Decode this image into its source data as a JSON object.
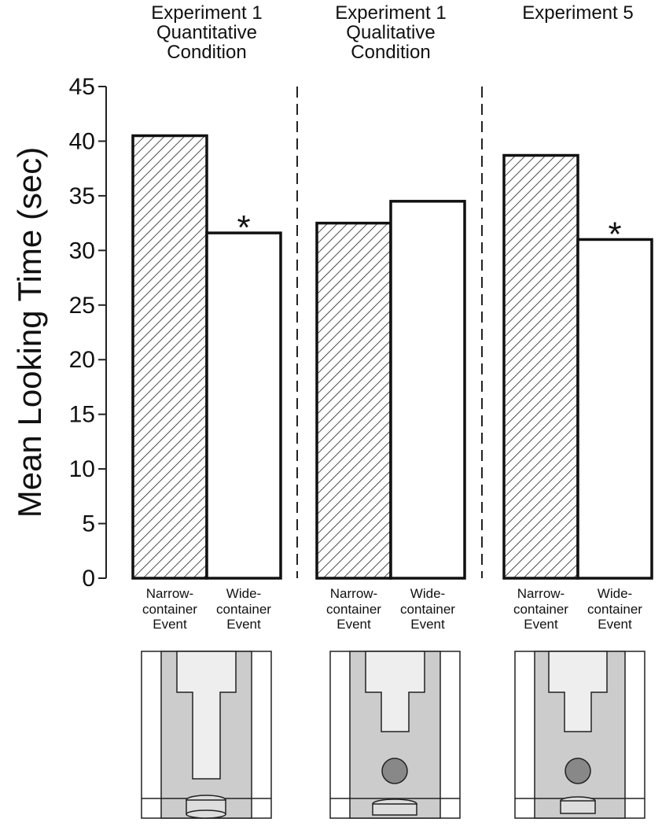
{
  "chart_data": {
    "type": "bar",
    "ylabel": "Mean Looking Time (sec)",
    "ylim": [
      0,
      45
    ],
    "yticks": [
      0,
      5,
      10,
      15,
      20,
      25,
      30,
      35,
      40,
      45
    ],
    "panels": [
      {
        "title": "Experiment 1 Quantitative Condition",
        "categories": [
          "Narrow-container Event",
          "Wide-container Event"
        ],
        "values": [
          40.5,
          31.6
        ],
        "annotations": [
          {
            "text": "*",
            "category": "Wide-container Event"
          }
        ]
      },
      {
        "title": "Experiment 1 Qualitative Condition",
        "categories": [
          "Narrow-container Event",
          "Wide-container Event"
        ],
        "values": [
          32.5,
          34.5
        ]
      },
      {
        "title": "Experiment 5",
        "categories": [
          "Narrow-container Event",
          "Wide-container Event"
        ],
        "values": [
          38.7,
          31.0
        ],
        "annotations": [
          {
            "text": "*",
            "category": "Wide-container Event"
          }
        ]
      }
    ]
  }
}
